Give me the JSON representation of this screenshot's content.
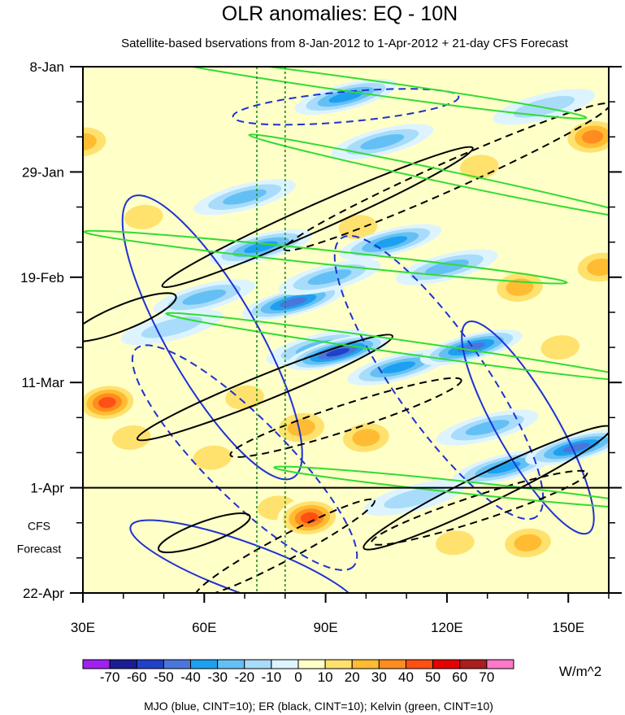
{
  "chart_data": {
    "type": "heatmap",
    "title": "OLR anomalies: EQ - 10N",
    "subtitle": "Satellite-based bservations from 8-Jan-2012 to 1-Apr-2012 + 21-day CFS Forecast",
    "x_axis": {
      "range": [
        30,
        160
      ],
      "ticks": [
        30,
        60,
        90,
        120,
        150
      ],
      "tick_labels": [
        "30E",
        "60E",
        "90E",
        "120E",
        "150E"
      ]
    },
    "y_axis": {
      "start_label": "8-Jan",
      "range_days": [
        0,
        105
      ],
      "ticks_days": [
        0,
        21,
        42,
        63,
        84,
        105
      ],
      "tick_labels": [
        "8-Jan",
        "29-Jan",
        "19-Feb",
        "11-Mar",
        "1-Apr",
        "22-Apr"
      ]
    },
    "forecast_start_day": 84,
    "forecast_label": [
      "CFS",
      "Forecast"
    ],
    "reference_longitudes": [
      73,
      80
    ],
    "colorbar": {
      "levels": [
        -70,
        -60,
        -50,
        -40,
        -30,
        -20,
        -10,
        0,
        10,
        20,
        30,
        40,
        50,
        60,
        70
      ],
      "level_labels": [
        "-70",
        "-60",
        "-50",
        "-40",
        "-30",
        "-20",
        "-10",
        "0",
        "10",
        "20",
        "30",
        "40",
        "50",
        "60",
        "70"
      ],
      "colors": [
        "#a020f0",
        "#1c1c96",
        "#2040c8",
        "#4a76dc",
        "#1ea0f0",
        "#64c0f4",
        "#a8dcfa",
        "#ddf4ff",
        "#ffffc8",
        "#ffe16e",
        "#ffbc32",
        "#ff8c1e",
        "#ff5014",
        "#e60000",
        "#aa1e1e",
        "#ff78c8"
      ],
      "units": "W/m^2"
    },
    "field_features": [
      {
        "lon": 30,
        "day": 15,
        "value": 30
      },
      {
        "lon": 36,
        "day": 67,
        "value": 50
      },
      {
        "lon": 42,
        "day": 74,
        "value": 20
      },
      {
        "lon": 45,
        "day": 30,
        "value": 20
      },
      {
        "lon": 52,
        "day": 52,
        "value": -20
      },
      {
        "lon": 60,
        "day": 46,
        "value": -30
      },
      {
        "lon": 62,
        "day": 78,
        "value": 20
      },
      {
        "lon": 70,
        "day": 26,
        "value": -30
      },
      {
        "lon": 70,
        "day": 66,
        "value": 20
      },
      {
        "lon": 74,
        "day": 36,
        "value": -40
      },
      {
        "lon": 78,
        "day": 88,
        "value": 20
      },
      {
        "lon": 82,
        "day": 47,
        "value": -50
      },
      {
        "lon": 84,
        "day": 72,
        "value": 30
      },
      {
        "lon": 86,
        "day": 90,
        "value": 50
      },
      {
        "lon": 88,
        "day": 56,
        "value": -30
      },
      {
        "lon": 91,
        "day": 42,
        "value": -30
      },
      {
        "lon": 93,
        "day": 57,
        "value": -60
      },
      {
        "lon": 95,
        "day": 6,
        "value": -40
      },
      {
        "lon": 98,
        "day": 32,
        "value": 20
      },
      {
        "lon": 100,
        "day": 74,
        "value": 30
      },
      {
        "lon": 104,
        "day": 15,
        "value": -30
      },
      {
        "lon": 106,
        "day": 35,
        "value": -40
      },
      {
        "lon": 108,
        "day": 60,
        "value": -40
      },
      {
        "lon": 112,
        "day": 86,
        "value": -20
      },
      {
        "lon": 120,
        "day": 40,
        "value": -30
      },
      {
        "lon": 122,
        "day": 95,
        "value": 20
      },
      {
        "lon": 126,
        "day": 56,
        "value": -50
      },
      {
        "lon": 128,
        "day": 20,
        "value": 20
      },
      {
        "lon": 130,
        "day": 72,
        "value": -30
      },
      {
        "lon": 134,
        "day": 80,
        "value": -40
      },
      {
        "lon": 138,
        "day": 44,
        "value": 30
      },
      {
        "lon": 140,
        "day": 95,
        "value": 30
      },
      {
        "lon": 144,
        "day": 8,
        "value": -20
      },
      {
        "lon": 148,
        "day": 56,
        "value": 20
      },
      {
        "lon": 152,
        "day": 76,
        "value": -50
      },
      {
        "lon": 156,
        "day": 14,
        "value": 40
      },
      {
        "lon": 158,
        "day": 40,
        "value": 30
      }
    ],
    "contour_series": [
      {
        "name": "MJO",
        "color": "#1e32d2"
      },
      {
        "name": "ER",
        "color": "#000000"
      },
      {
        "name": "Kelvin",
        "color": "#32dc32"
      }
    ],
    "legend_note": "MJO (blue, CINT=10); ER (black, CINT=10); Kelvin (green, CINT=10)"
  }
}
